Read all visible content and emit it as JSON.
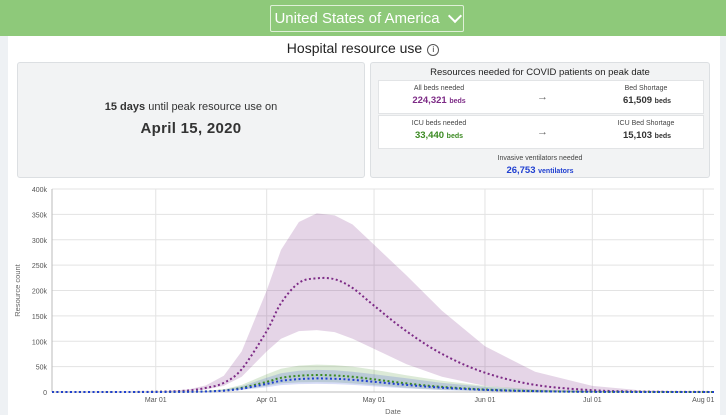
{
  "header": {
    "country": "United States of America"
  },
  "title": "Hospital resource use",
  "peak": {
    "days": "15 days",
    "until_text": "until peak resource use on",
    "date": "April 15, 2020"
  },
  "resources": {
    "title": "Resources needed for COVID patients on peak date",
    "all_beds": {
      "label": "All beds needed",
      "value": "224,321",
      "unit": "beds"
    },
    "bed_shortage": {
      "label": "Bed Shortage",
      "value": "61,509",
      "unit": "beds"
    },
    "icu_beds": {
      "label": "ICU beds needed",
      "value": "33,440",
      "unit": "beds"
    },
    "icu_shortage": {
      "label": "ICU Bed Shortage",
      "value": "15,103",
      "unit": "beds"
    },
    "ventilators": {
      "label": "Invasive ventilators needed",
      "value": "26,753",
      "unit": "ventilators"
    }
  },
  "colors": {
    "header_green": "#8ec97a",
    "all_beds": "#7d2b86",
    "icu_beds": "#3b8a22",
    "ventilators": "#1f3fd1"
  },
  "chart_data": {
    "type": "line",
    "xlabel": "Date",
    "ylabel": "Resource count",
    "x_ticks": [
      "Mar 01",
      "Apr 01",
      "May 01",
      "Jun 01",
      "Jul 01",
      "Aug 01"
    ],
    "y_ticks": [
      "0",
      "50k",
      "100k",
      "150k",
      "200k",
      "250k",
      "300k",
      "350k",
      "400k"
    ],
    "ylim": [
      0,
      400000
    ],
    "grid": true,
    "x": [
      "2020-02-01",
      "2020-02-15",
      "2020-03-01",
      "2020-03-10",
      "2020-03-15",
      "2020-03-20",
      "2020-03-25",
      "2020-04-01",
      "2020-04-05",
      "2020-04-10",
      "2020-04-15",
      "2020-04-20",
      "2020-04-25",
      "2020-05-01",
      "2020-05-10",
      "2020-05-20",
      "2020-06-01",
      "2020-06-15",
      "2020-07-01",
      "2020-07-15",
      "2020-08-01",
      "2020-08-04"
    ],
    "series": [
      {
        "color": "#7d2b86",
        "style": "dotted",
        "values": [
          0,
          0,
          500,
          3000,
          8000,
          18000,
          45000,
          120000,
          175000,
          215000,
          224000,
          222000,
          205000,
          170000,
          120000,
          75000,
          38000,
          14000,
          3500,
          800,
          100,
          50
        ],
        "band_lower": [
          0,
          0,
          300,
          2000,
          5000,
          12000,
          30000,
          80000,
          105000,
          120000,
          122000,
          118000,
          105000,
          85000,
          55000,
          30000,
          12000,
          3000,
          500,
          100,
          10,
          0
        ],
        "band_upper": [
          0,
          0,
          800,
          5000,
          13000,
          32000,
          80000,
          200000,
          280000,
          335000,
          352000,
          348000,
          330000,
          290000,
          230000,
          160000,
          90000,
          40000,
          12000,
          3000,
          600,
          300
        ]
      },
      {
        "color": "#3b8a22",
        "style": "dotted",
        "values": [
          0,
          0,
          100,
          500,
          1200,
          3000,
          8000,
          20000,
          28000,
          32000,
          33400,
          32500,
          30000,
          25000,
          17000,
          10000,
          5000,
          1800,
          400,
          100,
          10,
          0
        ],
        "band_lower": [
          0,
          0,
          50,
          300,
          800,
          2000,
          5000,
          12000,
          17000,
          19000,
          19500,
          19000,
          17000,
          13500,
          8500,
          4500,
          1800,
          500,
          80,
          10,
          0,
          0
        ],
        "band_upper": [
          0,
          0,
          200,
          900,
          2200,
          5500,
          14000,
          35000,
          46000,
          52000,
          54000,
          53000,
          50000,
          44000,
          33000,
          22000,
          12000,
          5000,
          1500,
          400,
          80,
          30
        ]
      },
      {
        "color": "#1f3fd1",
        "style": "dotted",
        "values": [
          0,
          0,
          80,
          400,
          1000,
          2500,
          6500,
          16000,
          22000,
          25500,
          26700,
          26000,
          24000,
          20000,
          14000,
          8500,
          4200,
          1500,
          350,
          80,
          10,
          0
        ],
        "band_lower": [
          0,
          0,
          40,
          250,
          600,
          1500,
          4000,
          9500,
          13500,
          15500,
          16000,
          15500,
          14000,
          11000,
          7000,
          3800,
          1500,
          400,
          70,
          10,
          0,
          0
        ],
        "band_upper": [
          0,
          0,
          150,
          700,
          1800,
          4500,
          11500,
          28000,
          37000,
          42000,
          43500,
          43000,
          40000,
          35000,
          27000,
          18000,
          10000,
          4200,
          1200,
          300,
          60,
          20
        ]
      }
    ]
  }
}
